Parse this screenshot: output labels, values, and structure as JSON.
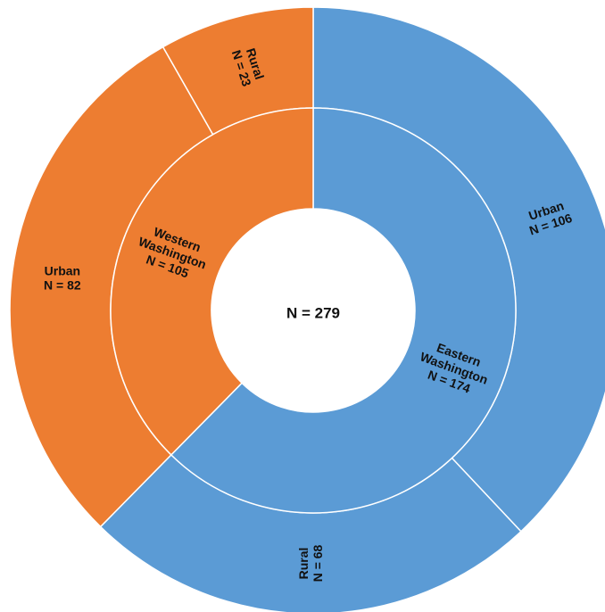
{
  "chart_data": {
    "type": "sunburst",
    "center_label": "N = 279",
    "total": 279,
    "inner_ring": [
      {
        "name": "Eastern Washington",
        "lines": [
          "Eastern",
          "Washington",
          "N = 174"
        ],
        "value": 174,
        "color": "#5B9BD5"
      },
      {
        "name": "Western Washington",
        "lines": [
          "Western",
          "Washington",
          "N = 105"
        ],
        "value": 105,
        "color": "#ED7D31"
      }
    ],
    "outer_ring": [
      {
        "name": "Urban",
        "parent": "Eastern Washington",
        "lines": [
          "Urban",
          "N = 106"
        ],
        "value": 106,
        "color": "#5B9BD5"
      },
      {
        "name": "Rural",
        "parent": "Eastern Washington",
        "lines": [
          "Rural",
          "N = 68"
        ],
        "value": 68,
        "color": "#5B9BD5"
      },
      {
        "name": "Urban",
        "parent": "Western Washington",
        "lines": [
          "Urban",
          "N = 82"
        ],
        "value": 82,
        "color": "#ED7D31"
      },
      {
        "name": "Rural",
        "parent": "Western Washington",
        "lines": [
          "Rural",
          "N = 23"
        ],
        "value": 23,
        "color": "#ED7D31"
      }
    ]
  }
}
